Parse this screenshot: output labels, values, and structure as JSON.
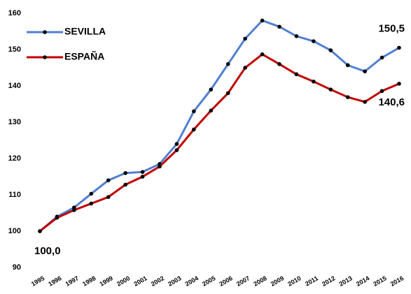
{
  "chart_data": {
    "type": "line",
    "categories": [
      "1995",
      "1996",
      "1997",
      "1998",
      "1999",
      "2000",
      "2001",
      "2002",
      "2003",
      "2004",
      "2005",
      "2006",
      "2007",
      "2008",
      "2009",
      "2010",
      "2011",
      "2012",
      "2013",
      "2014",
      "2015",
      "2016"
    ],
    "series": [
      {
        "name": "SEVILLA",
        "color": "#4f7fd0",
        "values": [
          100,
          104,
          106.5,
          110.3,
          114,
          116,
          116.3,
          118.5,
          124,
          133,
          139,
          146,
          153,
          158,
          156.3,
          153.7,
          152.3,
          149.8,
          145.7,
          144,
          147.8,
          150.5
        ],
        "value_labels": [
          "100,0",
          null,
          null,
          null,
          null,
          null,
          null,
          null,
          null,
          null,
          null,
          null,
          null,
          null,
          null,
          null,
          null,
          null,
          null,
          null,
          null,
          "150,5"
        ]
      },
      {
        "name": "ESPAÑA",
        "color": "#c00000",
        "values": [
          100,
          103.7,
          105.8,
          107.6,
          109.4,
          112.8,
          115,
          117.8,
          122.3,
          128,
          133.2,
          138,
          145,
          148.7,
          146,
          143.2,
          141.2,
          139,
          136.9,
          135.6,
          138.6,
          140.6
        ],
        "value_labels": [
          null,
          null,
          null,
          null,
          null,
          null,
          null,
          null,
          null,
          null,
          null,
          null,
          null,
          null,
          null,
          null,
          null,
          null,
          null,
          null,
          null,
          "140,6"
        ]
      }
    ],
    "ylim": [
      90,
      160
    ],
    "yticks": [
      90,
      100,
      110,
      120,
      130,
      140,
      150,
      160
    ],
    "grid": false,
    "legend": "top-left"
  }
}
